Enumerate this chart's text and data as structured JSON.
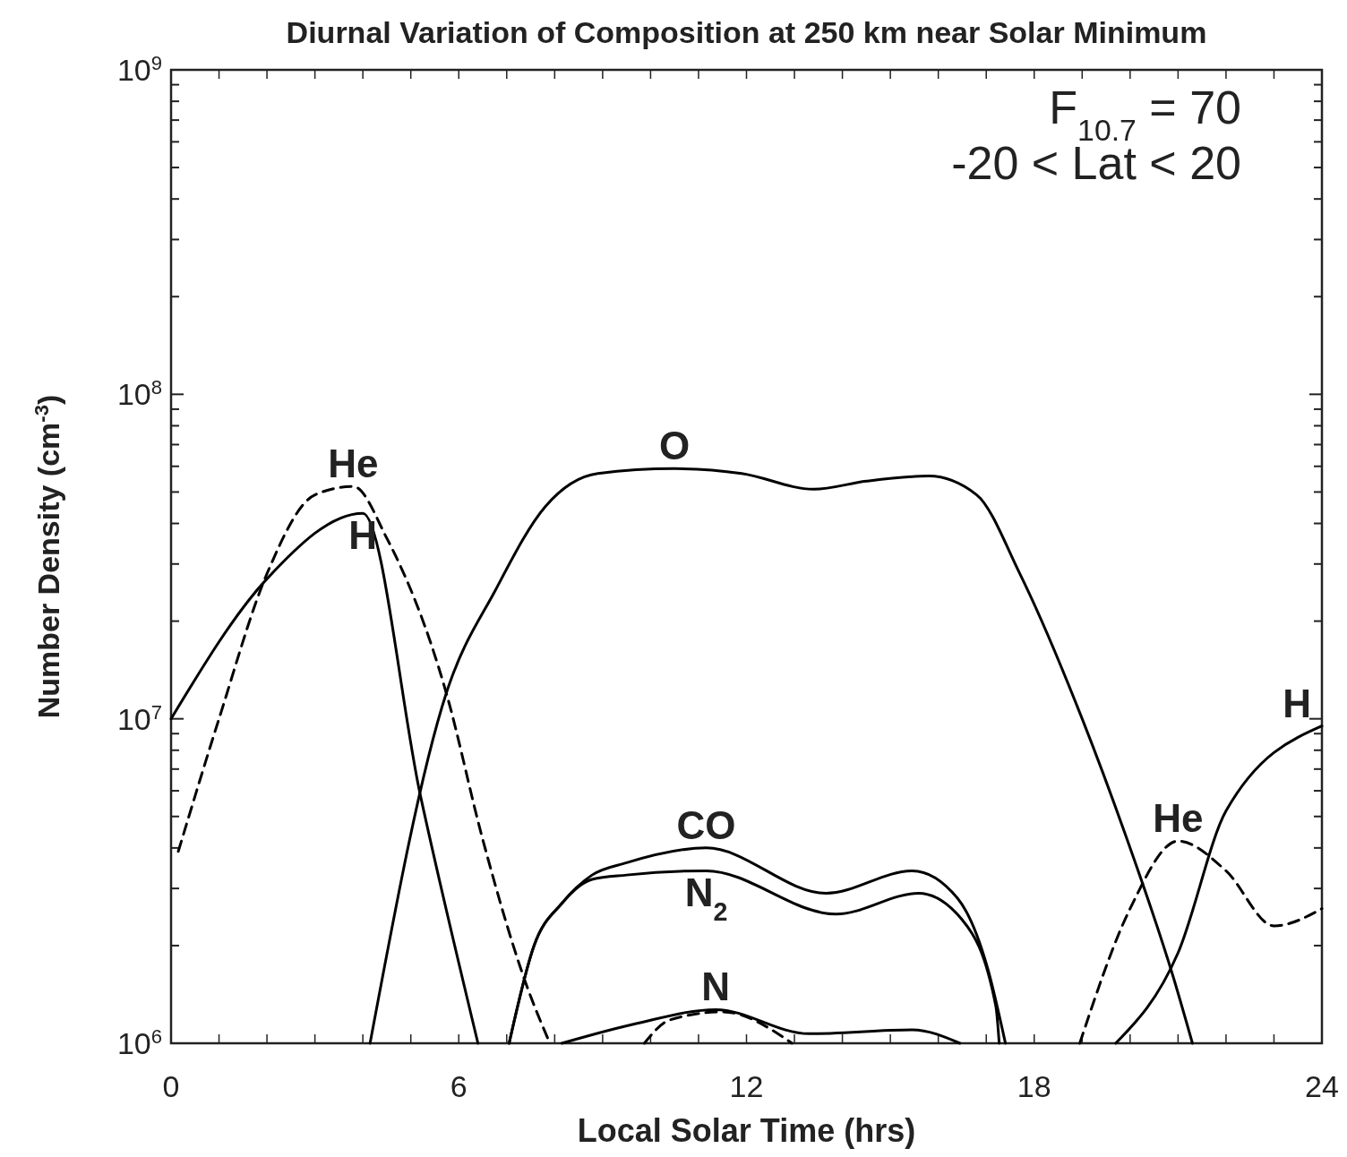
{
  "chart_data": {
    "type": "line",
    "title": "Diurnal Variation of Composition at 250 km near Solar Minimum",
    "xlabel": "Local Solar Time (hrs)",
    "ylabel": "Number Density (cm$^{-3}$)",
    "log": "y",
    "grid": false,
    "legend": false,
    "marker": "none",
    "xlim": [
      0,
      24
    ],
    "xticks": [
      0,
      {
        "value": 1,
        "label": null
      },
      {
        "value": 2,
        "label": null
      },
      {
        "value": 3,
        "label": null
      },
      {
        "value": 4,
        "label": null
      },
      {
        "value": 5,
        "label": null
      },
      6,
      {
        "value": 7,
        "label": null
      },
      {
        "value": 8,
        "label": null
      },
      {
        "value": 9,
        "label": null
      },
      {
        "value": 10,
        "label": null
      },
      {
        "value": 11,
        "label": null
      },
      12,
      {
        "value": 13,
        "label": null
      },
      {
        "value": 14,
        "label": null
      },
      {
        "value": 15,
        "label": null
      },
      {
        "value": 16,
        "label": null
      },
      {
        "value": 17,
        "label": null
      },
      18,
      {
        "value": 19,
        "label": null
      },
      {
        "value": 20,
        "label": null
      },
      {
        "value": 21,
        "label": null
      },
      {
        "value": 22,
        "label": null
      },
      {
        "value": 23,
        "label": null
      },
      24
    ],
    "ylim": [
      1000000,
      1000000000
    ],
    "yticks": [
      {
        "value": 1000000,
        "label": "10$^{6}$"
      },
      {
        "value": 2000000,
        "label": null
      },
      {
        "value": 3000000,
        "label": null
      },
      {
        "value": 4000000,
        "label": null
      },
      {
        "value": 5000000,
        "label": null
      },
      {
        "value": 6000000,
        "label": null
      },
      {
        "value": 7000000,
        "label": null
      },
      {
        "value": 8000000,
        "label": null
      },
      {
        "value": 9000000,
        "label": null
      },
      {
        "value": 10000000,
        "label": "10$^{7}$"
      },
      {
        "value": 20000000,
        "label": null
      },
      {
        "value": 30000000,
        "label": null
      },
      {
        "value": 40000000,
        "label": null
      },
      {
        "value": 50000000,
        "label": null
      },
      {
        "value": 60000000,
        "label": null
      },
      {
        "value": 70000000,
        "label": null
      },
      {
        "value": 80000000,
        "label": null
      },
      {
        "value": 90000000,
        "label": null
      },
      {
        "value": 100000000,
        "label": "10$^{8}$"
      },
      {
        "value": 200000000,
        "label": null
      },
      {
        "value": 300000000,
        "label": null
      },
      {
        "value": 400000000,
        "label": null
      },
      {
        "value": 500000000,
        "label": null
      },
      {
        "value": 600000000,
        "label": null
      },
      {
        "value": 700000000,
        "label": null
      },
      {
        "value": 800000000,
        "label": null
      },
      {
        "value": 900000000,
        "label": null
      },
      {
        "value": 1000000000,
        "label": "10$^{9}$"
      }
    ],
    "series": [
      {
        "name": "O",
        "color": "#000000",
        "line_style": "solid",
        "x": [
          4.15,
          5.74,
          6.77,
          7.8,
          8.9,
          10.5,
          11.9,
          13.4,
          14.5,
          15.8,
          16.8,
          17.7,
          19.0,
          19.9,
          20.9,
          21.3
        ],
        "values": [
          1000000,
          12000000,
          25000000,
          45000000,
          57000000,
          59000000,
          57000000,
          51000000,
          54000000,
          56000000,
          49000000,
          28000000,
          10000000,
          4400000,
          1600000,
          1000000
        ]
      },
      {
        "name": "He",
        "color": "#000000",
        "line_style": "dashed",
        "x": [
          0.15,
          1,
          2,
          3,
          3.8,
          4.5,
          5.74,
          6.49,
          7.42,
          7.9
        ],
        "values": [
          3900000,
          10000000,
          28000000,
          49000000,
          52000000,
          36000000,
          12000000,
          4300000,
          1500000,
          1000000
        ]
      },
      {
        "name": "He",
        "color": "#000000",
        "line_style": "dashed",
        "x": [
          18.95,
          20,
          21,
          22,
          23,
          24
        ],
        "values": [
          1000000,
          2600000,
          4200000,
          3400000,
          2300000,
          2600000
        ]
      },
      {
        "name": "H",
        "color": "#000000",
        "line_style": "solid",
        "x": [
          0,
          2,
          4,
          5.2,
          6.4
        ],
        "values": [
          10000000,
          27000000,
          43000000,
          5800000,
          1000000
        ]
      },
      {
        "name": "H",
        "color": "#000000",
        "line_style": "solid",
        "x": [
          19.7,
          21,
          22,
          24
        ],
        "values": [
          1000000,
          1900000,
          5200000,
          9500000
        ]
      },
      {
        "name": "CO",
        "color": "#000000",
        "line_style": "solid",
        "x": [
          7.05,
          7.57,
          8.15,
          8.78,
          9.5,
          11.16,
          13.66,
          15.46,
          16.4,
          17.03,
          17.4
        ],
        "values": [
          1000000,
          2000000,
          2700000,
          3300000,
          3600000,
          4000000,
          2900000,
          3400000,
          2800000,
          1700000,
          1000000
        ]
      },
      {
        "name": "N$_{2}$",
        "color": "#000000",
        "line_style": "solid",
        "x": [
          7.05,
          7.57,
          8.15,
          8.78,
          9.5,
          11.16,
          13.87,
          15.59,
          16.5,
          17.2,
          17.27
        ],
        "values": [
          1000000,
          2000000,
          2700000,
          3200000,
          3300000,
          3400000,
          2500000,
          2900000,
          2400000,
          1300000,
          1000000
        ]
      },
      {
        "name": "N",
        "color": "#000000",
        "line_style": "solid",
        "x": [
          8.15,
          9.7,
          11.36,
          13.3,
          15.46,
          16.45
        ],
        "values": [
          1000000,
          1150000,
          1270000,
          1070000,
          1100000,
          1000000
        ]
      },
      {
        "color": "#000000",
        "line_style": "dashed",
        "x": [
          9.87,
          10.4,
          11.5,
          12.95
        ],
        "values": [
          1000000,
          1180000,
          1250000,
          1000000
        ]
      }
    ],
    "annotations": [
      "F$_{10.7}$ = 70",
      "-20 < Lat < 20"
    ]
  }
}
